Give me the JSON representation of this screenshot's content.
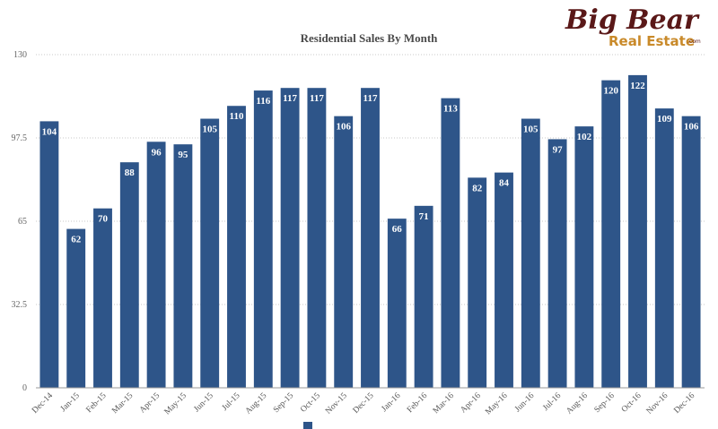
{
  "brand": {
    "logo_text": "Big Bear Real Estate.com",
    "logo_primary_color": "#5a1818",
    "logo_secondary_color": "#c98a2a"
  },
  "chart_data": {
    "type": "bar",
    "title": "Residential Sales By Month",
    "xlabel": "",
    "ylabel": "",
    "ylim": [
      0,
      130
    ],
    "yticks": [
      0,
      32.5,
      65,
      97.5,
      130
    ],
    "ytick_labels": [
      "0",
      "32.5",
      "65",
      "97.5",
      "130"
    ],
    "grid": true,
    "bar_color": "#2e5589",
    "categories": [
      "Dec-14",
      "Jan-15",
      "Feb-15",
      "Mar-15",
      "Apr-15",
      "May-15",
      "Jun-15",
      "Jul-15",
      "Aug-15",
      "Sep-15",
      "Oct-15",
      "Nov-15",
      "Dec-15",
      "Jan-16",
      "Feb-16",
      "Mar-16",
      "Apr-16",
      "May-16",
      "Jun-16",
      "Jul-16",
      "Aug-16",
      "Sep-16",
      "Oct-16",
      "Nov-16",
      "Dec-16"
    ],
    "values": [
      104,
      62,
      70,
      88,
      96,
      95,
      105,
      110,
      116,
      117,
      117,
      106,
      117,
      66,
      71,
      113,
      82,
      84,
      105,
      97,
      102,
      120,
      122,
      109,
      106
    ],
    "legend": {
      "placement": "bottom",
      "series_name": ""
    }
  }
}
